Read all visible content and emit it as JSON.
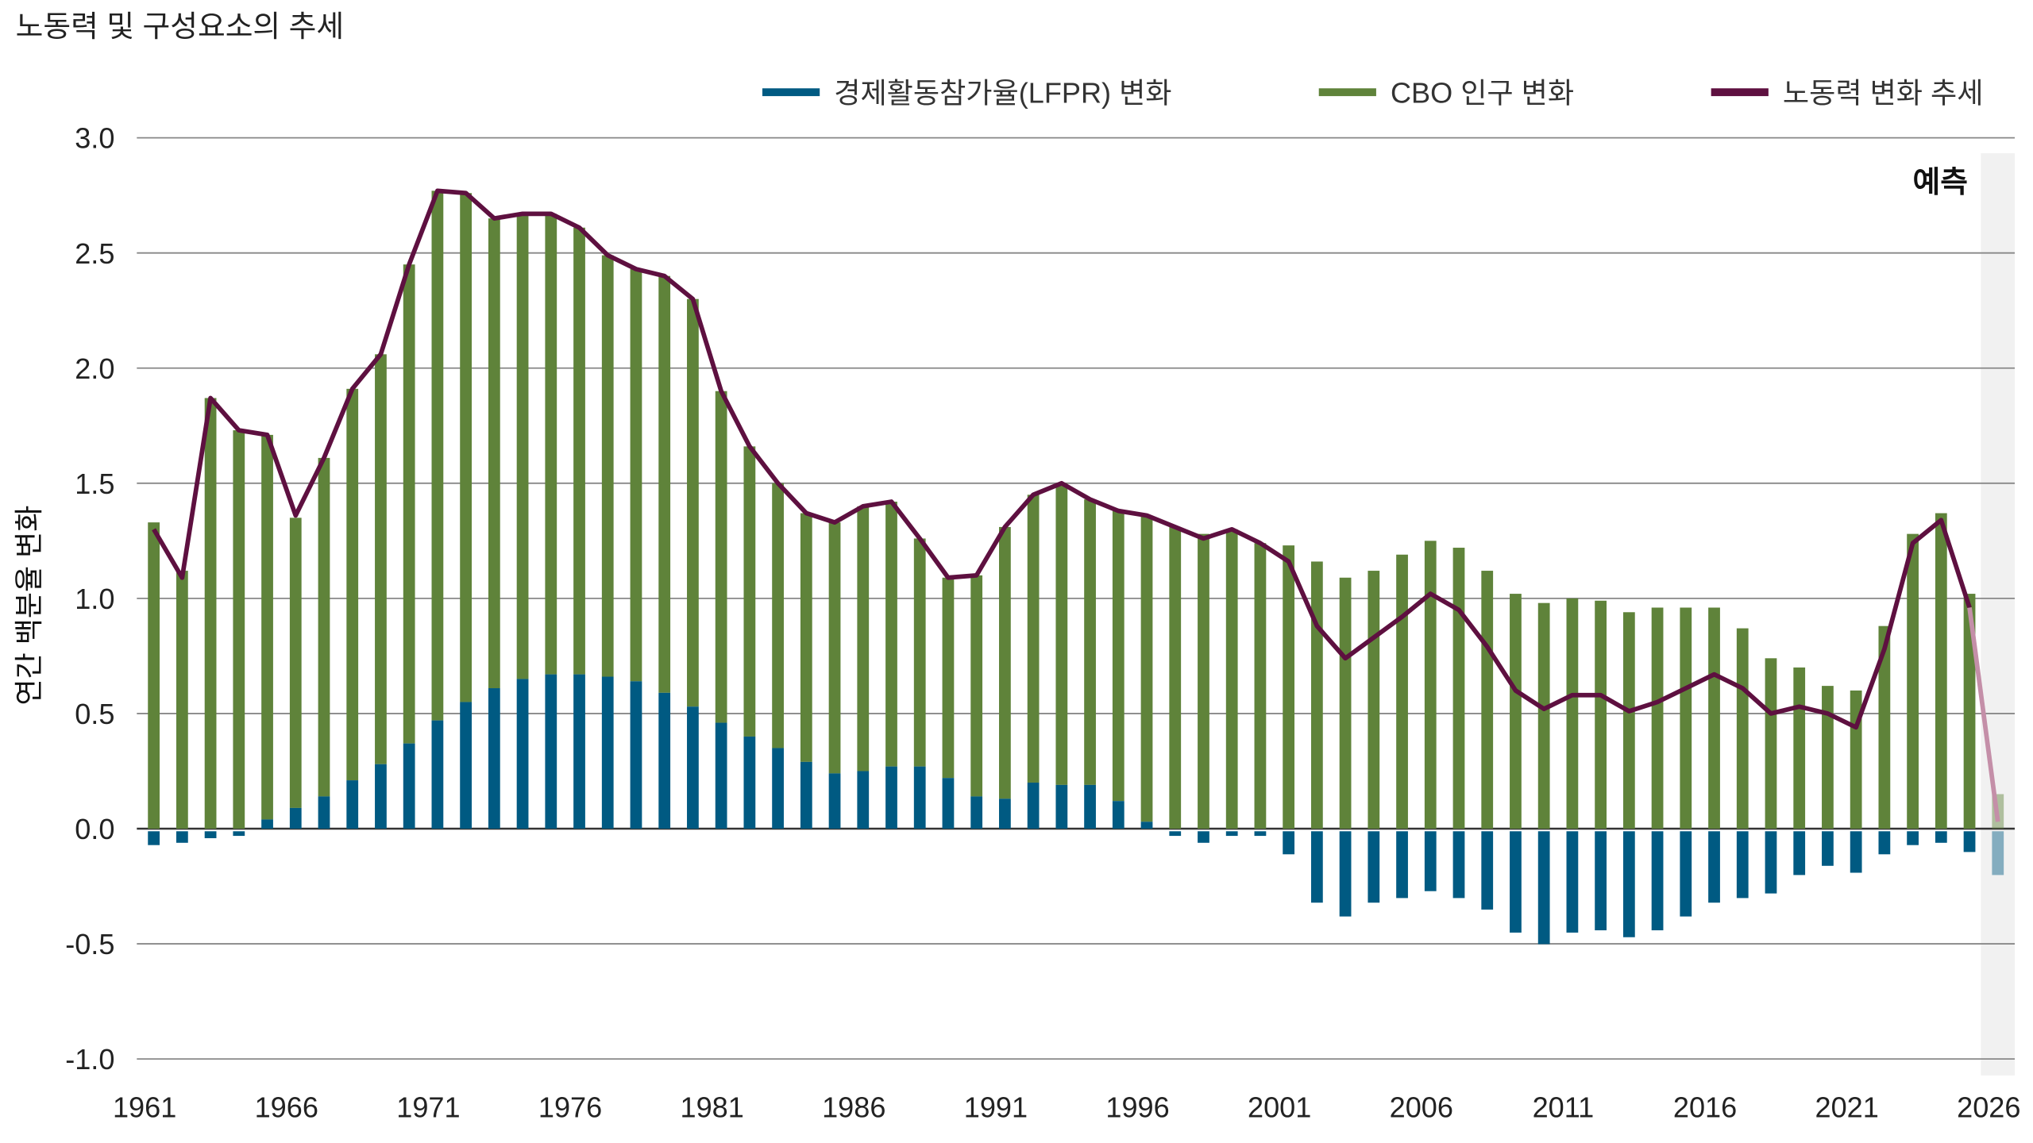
{
  "chart_data": {
    "type": "bar",
    "title": "노동력 및 구성요소의 추세",
    "ylabel": "연간 백분율 변화",
    "xlabel": "",
    "ylim": [
      -1.0,
      3.0
    ],
    "yticks": [
      "3.0",
      "2.5",
      "2.0",
      "1.5",
      "1.0",
      "0.5",
      "0.0",
      "-0.5",
      "-1.0"
    ],
    "ytick_values": [
      3.0,
      2.5,
      2.0,
      1.5,
      1.0,
      0.5,
      0.0,
      -0.5,
      -1.0
    ],
    "xticks": [
      "1961",
      "1966",
      "1971",
      "1976",
      "1981",
      "1986",
      "1991",
      "1996",
      "2001",
      "2006",
      "2011",
      "2016",
      "2021",
      "2026"
    ],
    "grid": true,
    "legend_position": "top-right",
    "forecast_label": "예측",
    "forecast_from": 2026,
    "colors": {
      "lfpr": "#005a82",
      "pop": "#5f833a",
      "trend": "#5e1040",
      "forecast_bg": "#f1f1f1"
    },
    "x": [
      1961,
      1962,
      1963,
      1964,
      1965,
      1966,
      1967,
      1968,
      1969,
      1970,
      1971,
      1972,
      1973,
      1974,
      1975,
      1976,
      1977,
      1978,
      1979,
      1980,
      1981,
      1982,
      1983,
      1984,
      1985,
      1986,
      1987,
      1988,
      1989,
      1990,
      1991,
      1992,
      1993,
      1994,
      1995,
      1996,
      1997,
      1998,
      1999,
      2000,
      2001,
      2002,
      2003,
      2004,
      2005,
      2006,
      2007,
      2008,
      2009,
      2010,
      2011,
      2012,
      2013,
      2014,
      2015,
      2016,
      2017,
      2018,
      2019,
      2020,
      2021,
      2022,
      2023,
      2024,
      2025,
      2026
    ],
    "series": [
      {
        "name": "경제활동참가율(LFPR) 변화",
        "type": "bar",
        "values": [
          -0.06,
          -0.05,
          -0.03,
          -0.02,
          0.04,
          0.09,
          0.14,
          0.21,
          0.28,
          0.37,
          0.47,
          0.55,
          0.61,
          0.65,
          0.67,
          0.67,
          0.66,
          0.64,
          0.59,
          0.53,
          0.46,
          0.4,
          0.35,
          0.29,
          0.24,
          0.25,
          0.27,
          0.27,
          0.22,
          0.14,
          0.13,
          0.2,
          0.19,
          0.19,
          0.12,
          0.03,
          -0.02,
          -0.05,
          -0.02,
          -0.02,
          -0.1,
          -0.31,
          -0.37,
          -0.31,
          -0.29,
          -0.26,
          -0.29,
          -0.34,
          -0.44,
          -0.49,
          -0.44,
          -0.43,
          -0.46,
          -0.43,
          -0.37,
          -0.31,
          -0.29,
          -0.27,
          -0.19,
          -0.15,
          -0.18,
          -0.1,
          -0.06,
          -0.05,
          -0.09,
          -0.19
        ]
      },
      {
        "name": "CBO 인구 변화",
        "type": "bar",
        "values": [
          1.33,
          1.12,
          1.87,
          1.73,
          1.67,
          1.26,
          1.47,
          1.7,
          1.78,
          2.08,
          2.3,
          2.21,
          2.04,
          2.02,
          2.0,
          1.94,
          1.83,
          1.79,
          1.81,
          1.77,
          1.44,
          1.26,
          1.15,
          1.08,
          1.09,
          1.15,
          1.15,
          0.99,
          0.87,
          0.96,
          1.18,
          1.25,
          1.31,
          1.24,
          1.26,
          1.33,
          1.31,
          1.28,
          1.3,
          1.24,
          1.23,
          1.16,
          1.09,
          1.12,
          1.19,
          1.25,
          1.22,
          1.12,
          1.02,
          0.98,
          1.0,
          0.99,
          0.94,
          0.96,
          0.96,
          0.96,
          0.87,
          0.74,
          0.7,
          0.62,
          0.6,
          0.88,
          1.28,
          1.37,
          1.02,
          0.15
        ]
      },
      {
        "name": "노동력 변화 추세",
        "type": "line",
        "values": [
          1.3,
          1.09,
          1.87,
          1.73,
          1.71,
          1.36,
          1.61,
          1.91,
          2.06,
          2.45,
          2.77,
          2.76,
          2.65,
          2.67,
          2.67,
          2.61,
          2.49,
          2.43,
          2.4,
          2.3,
          1.9,
          1.66,
          1.5,
          1.37,
          1.33,
          1.4,
          1.42,
          1.26,
          1.09,
          1.1,
          1.31,
          1.45,
          1.5,
          1.43,
          1.38,
          1.36,
          1.31,
          1.26,
          1.3,
          1.24,
          1.16,
          0.88,
          0.74,
          0.83,
          0.92,
          1.02,
          0.95,
          0.79,
          0.6,
          0.52,
          0.58,
          0.58,
          0.51,
          0.55,
          0.61,
          0.67,
          0.61,
          0.5,
          0.53,
          0.5,
          0.44,
          0.78,
          1.24,
          1.34,
          0.96,
          0.03
        ]
      }
    ]
  }
}
